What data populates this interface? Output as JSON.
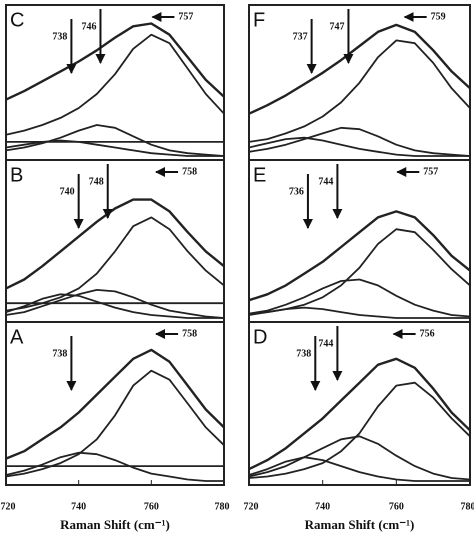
{
  "chart_data": [
    {
      "type": "line",
      "panel": "C",
      "x": [
        720,
        725,
        730,
        735,
        740,
        745,
        750,
        755,
        760,
        765,
        770,
        775,
        780
      ],
      "xlim": [
        720,
        780
      ],
      "ylim": [
        0,
        100
      ],
      "series": [
        {
          "color": "#222",
          "values": [
            40,
            46,
            53,
            60,
            67,
            75,
            84,
            92,
            94,
            86,
            70,
            54,
            42
          ]
        },
        {
          "color": "#222",
          "values": [
            15,
            18,
            22,
            27,
            34,
            44,
            58,
            76,
            86,
            80,
            62,
            44,
            30
          ]
        },
        {
          "color": "#222",
          "values": [
            4,
            6,
            9,
            13,
            18,
            22,
            20,
            14,
            8,
            4,
            2,
            1,
            0
          ]
        },
        {
          "color": "#222",
          "values": [
            6,
            8,
            10,
            11,
            10,
            8,
            6,
            4,
            2,
            1,
            0,
            0,
            0
          ]
        },
        {
          "color": "#222",
          "values": [
            10,
            10,
            10,
            10,
            10,
            10,
            10,
            10,
            10,
            10,
            10,
            10,
            10
          ]
        }
      ],
      "annotations": [
        {
          "value": 757,
          "arrow": "left"
        },
        {
          "value": 746,
          "arrow": "down"
        },
        {
          "value": 738,
          "arrow": "down"
        }
      ]
    },
    {
      "type": "line",
      "panel": "B",
      "x": [
        720,
        725,
        730,
        735,
        740,
        745,
        750,
        755,
        760,
        765,
        770,
        775,
        780
      ],
      "xlim": [
        720,
        780
      ],
      "ylim": [
        0,
        100
      ],
      "series": [
        {
          "color": "#222",
          "values": [
            20,
            26,
            35,
            45,
            55,
            65,
            74,
            80,
            80,
            72,
            58,
            45,
            35
          ]
        },
        {
          "color": "#222",
          "values": [
            5,
            7,
            10,
            14,
            20,
            30,
            45,
            62,
            68,
            60,
            45,
            32,
            22
          ]
        },
        {
          "color": "#222",
          "values": [
            2,
            4,
            8,
            12,
            16,
            19,
            18,
            14,
            9,
            5,
            3,
            1,
            0
          ]
        },
        {
          "color": "#222",
          "values": [
            4,
            8,
            13,
            16,
            15,
            11,
            7,
            4,
            2,
            1,
            0,
            0,
            0
          ]
        },
        {
          "color": "#222",
          "values": [
            10,
            10,
            10,
            10,
            10,
            10,
            10,
            10,
            10,
            10,
            10,
            10,
            10
          ]
        }
      ],
      "annotations": [
        {
          "value": 740,
          "arrow": "down"
        },
        {
          "value": 748,
          "arrow": "down"
        },
        {
          "value": 758,
          "arrow": "left"
        }
      ]
    },
    {
      "type": "line",
      "panel": "A",
      "x": [
        720,
        725,
        730,
        735,
        740,
        745,
        750,
        755,
        760,
        765,
        770,
        775,
        780
      ],
      "xlim": [
        720,
        780
      ],
      "ylim": [
        0,
        100
      ],
      "xticks": [
        720,
        740,
        760,
        780
      ],
      "xlabel": "Raman Shift (cm⁻¹)",
      "series": [
        {
          "color": "#222",
          "values": [
            15,
            20,
            28,
            36,
            46,
            58,
            70,
            82,
            88,
            80,
            64,
            48,
            36
          ]
        },
        {
          "color": "#222",
          "values": [
            3,
            5,
            8,
            12,
            18,
            28,
            44,
            64,
            74,
            68,
            52,
            36,
            24
          ]
        },
        {
          "color": "#222",
          "values": [
            4,
            7,
            11,
            16,
            19,
            18,
            14,
            9,
            5,
            3,
            1,
            0,
            0
          ]
        },
        {
          "color": "#222",
          "values": [
            10,
            10,
            10,
            10,
            10,
            10,
            10,
            10,
            10,
            10,
            10,
            10,
            10
          ]
        }
      ],
      "annotations": [
        {
          "value": 738,
          "arrow": "down"
        },
        {
          "value": 758,
          "arrow": "left"
        }
      ]
    },
    {
      "type": "line",
      "panel": "F",
      "x": [
        720,
        725,
        730,
        735,
        740,
        745,
        750,
        755,
        760,
        765,
        770,
        775,
        780
      ],
      "xlim": [
        720,
        780
      ],
      "ylim": [
        0,
        100
      ],
      "series": [
        {
          "color": "#222",
          "values": [
            30,
            36,
            43,
            51,
            59,
            68,
            78,
            88,
            93,
            88,
            75,
            60,
            48
          ]
        },
        {
          "color": "#222",
          "values": [
            10,
            12,
            16,
            21,
            28,
            38,
            52,
            70,
            82,
            80,
            66,
            48,
            34
          ]
        },
        {
          "color": "#222",
          "values": [
            3,
            5,
            8,
            12,
            16,
            20,
            19,
            14,
            8,
            4,
            2,
            1,
            0
          ]
        },
        {
          "color": "#222",
          "values": [
            6,
            9,
            12,
            13,
            11,
            8,
            5,
            3,
            1,
            0,
            0,
            0,
            0
          ]
        }
      ],
      "annotations": [
        {
          "value": 737,
          "arrow": "down"
        },
        {
          "value": 747,
          "arrow": "down"
        },
        {
          "value": 759,
          "arrow": "left"
        }
      ]
    },
    {
      "type": "line",
      "panel": "E",
      "x": [
        720,
        725,
        730,
        735,
        740,
        745,
        750,
        755,
        760,
        765,
        770,
        775,
        780
      ],
      "xlim": [
        720,
        780
      ],
      "ylim": [
        0,
        100
      ],
      "series": [
        {
          "color": "#222",
          "values": [
            12,
            16,
            22,
            30,
            38,
            48,
            58,
            68,
            72,
            68,
            56,
            42,
            32
          ]
        },
        {
          "color": "#222",
          "values": [
            3,
            4,
            6,
            9,
            14,
            22,
            34,
            50,
            60,
            58,
            46,
            33,
            22
          ]
        },
        {
          "color": "#222",
          "values": [
            3,
            5,
            9,
            14,
            20,
            25,
            26,
            22,
            15,
            9,
            5,
            2,
            1
          ]
        },
        {
          "color": "#222",
          "values": [
            2,
            4,
            6,
            7,
            6,
            4,
            2,
            1,
            0,
            0,
            0,
            0,
            0
          ]
        }
      ],
      "annotations": [
        {
          "value": 736,
          "arrow": "down"
        },
        {
          "value": 744,
          "arrow": "down"
        },
        {
          "value": 757,
          "arrow": "left"
        }
      ]
    },
    {
      "type": "line",
      "panel": "D",
      "x": [
        720,
        725,
        730,
        735,
        740,
        745,
        750,
        755,
        760,
        765,
        770,
        775,
        780
      ],
      "xlim": [
        720,
        780
      ],
      "ylim": [
        0,
        100
      ],
      "xticks": [
        720,
        740,
        760,
        780
      ],
      "xlabel": "Raman Shift (cm⁻¹)",
      "series": [
        {
          "color": "#222",
          "values": [
            8,
            14,
            22,
            32,
            42,
            54,
            66,
            78,
            82,
            76,
            62,
            46,
            34
          ]
        },
        {
          "color": "#222",
          "values": [
            2,
            3,
            5,
            8,
            12,
            20,
            32,
            50,
            64,
            66,
            56,
            42,
            30
          ]
        },
        {
          "color": "#222",
          "values": [
            3,
            6,
            10,
            16,
            22,
            28,
            30,
            25,
            17,
            10,
            5,
            2,
            1
          ]
        },
        {
          "color": "#222",
          "values": [
            4,
            8,
            13,
            16,
            14,
            10,
            6,
            3,
            1,
            0,
            0,
            0,
            0
          ]
        }
      ],
      "annotations": [
        {
          "value": 738,
          "arrow": "down"
        },
        {
          "value": 744,
          "arrow": "down"
        },
        {
          "value": 756,
          "arrow": "left"
        }
      ]
    }
  ]
}
